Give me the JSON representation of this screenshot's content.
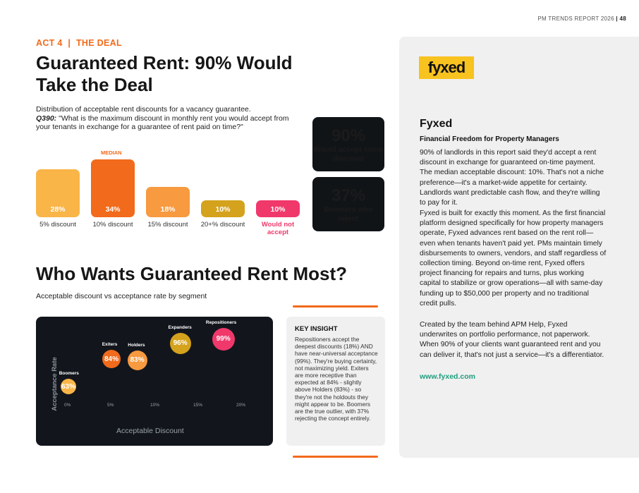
{
  "header": {
    "report": "PM TRENDS REPORT 2026",
    "separator": "|",
    "page": "48"
  },
  "section": {
    "act": "ACT 4",
    "sep": "|",
    "name": "THE DEAL"
  },
  "title": "Guaranteed Rent: 90% Would Take the Deal",
  "intro": {
    "line1": "Distribution of acceptable rent discounts for a vacancy guarantee.",
    "qcode": "Q390:",
    "question": " \"What is the maximum discount in monthly rent you would accept from your tenants in exchange for a guarantee of rent paid on time?\""
  },
  "chart_data": [
    {
      "type": "bar",
      "categories": [
        "5% discount",
        "10% discount",
        "15% discount",
        "20+% discount",
        "Would not accept"
      ],
      "values": [
        28,
        34,
        18,
        10,
        10
      ],
      "value_labels": [
        "28%",
        "34%",
        "18%",
        "10%",
        "10%"
      ],
      "annotation": "MEDIAN",
      "colors": [
        "#f9b548",
        "#f26a1b",
        "#f79a40",
        "#d4a21c",
        "#f0386b"
      ]
    },
    {
      "type": "scatter",
      "title": "Acceptable discount vs acceptance rate by segment",
      "xlabel": "Acceptable Discount",
      "ylabel": "Acceptance Rate",
      "x_ticks": [
        "0%",
        "5%",
        "10%",
        "15%",
        "20%"
      ],
      "points": [
        {
          "name": "Boomers",
          "x": 0,
          "y": 63,
          "label": "63%",
          "color": "#f9b548"
        },
        {
          "name": "Exiters",
          "x": 5,
          "y": 84,
          "label": "84%",
          "color": "#f26a1b"
        },
        {
          "name": "Holders",
          "x": 8,
          "y": 83,
          "label": "83%",
          "color": "#f79a40"
        },
        {
          "name": "Expanders",
          "x": 13,
          "y": 96,
          "label": "96%",
          "color": "#d4a21c"
        },
        {
          "name": "Repositioners",
          "x": 18,
          "y": 99,
          "label": "99%",
          "color": "#f0386b"
        }
      ]
    }
  ],
  "stats": [
    {
      "value": "90%",
      "label": "Would accept some discount",
      "color": "#f26a1b"
    },
    {
      "value": "37%",
      "label": "Boomers who reject",
      "color": "#f0386b"
    }
  ],
  "section2": {
    "title": "Who Wants Guaranteed Rent Most?"
  },
  "insight": {
    "title": "KEY INSIGHT",
    "body": "Repositioners accept the deepest discounts (18%) AND have near-universal acceptance (99%). They're buying certainty, not maximizing yield. Exiters are more receptive than expected at 84% - slightly above Holders (83%) - so they're not the holdouts they might appear to be. Boomers are the true outlier, with 37% rejecting the concept entirely."
  },
  "sidebar": {
    "logo": "fyxed",
    "name": "Fyxed",
    "tagline": "Financial Freedom for Property Managers",
    "p1": "90% of landlords in this report said they'd accept a rent discount in exchange for guaranteed on-time payment. The median acceptable discount: 10%. That's not a niche preference—it's a market-wide appetite for certainty. Landlords want predictable cash flow, and they're willing to pay for it.",
    "p2": "Fyxed is built for exactly this moment. As the first financial platform designed specifically for how property managers operate, Fyxed advances rent based on the rent roll—even when tenants haven't paid yet. PMs maintain timely disbursements to owners, vendors, and staff regardless of collection timing. Beyond on-time rent, Fyxed offers project financing for repairs and turns, plus working capital to stabilize or grow operations—all with same-day funding up to $50,000 per property and no traditional credit pulls.",
    "p3": "Created by the team behind APM Help, Fyxed underwrites on portfolio performance, not paperwork. When 90% of your clients want guaranteed rent and you can deliver it, that's not just a service—it's a differentiator.",
    "url": "www.fyxed.com"
  }
}
